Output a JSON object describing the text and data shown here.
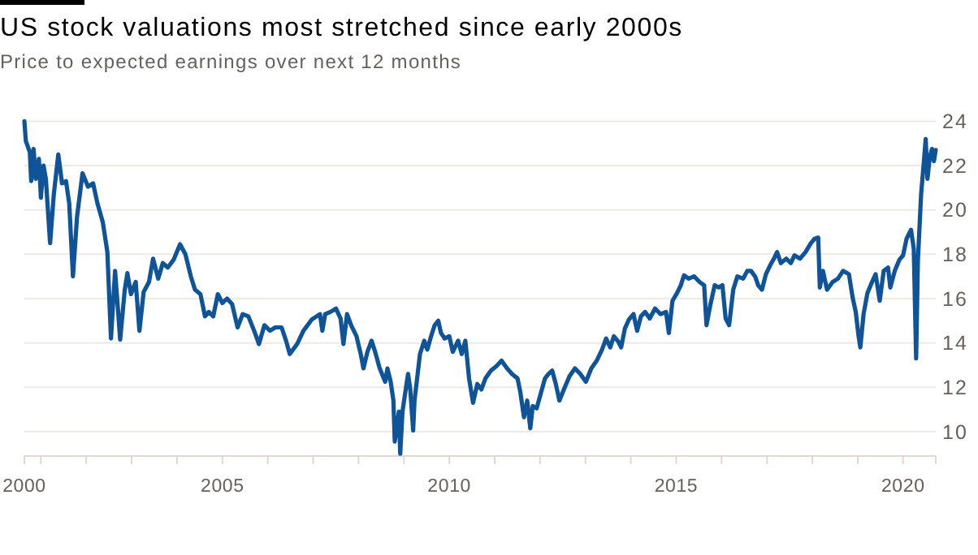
{
  "chart_data": {
    "type": "line",
    "title": "US stock valuations most stretched since early 2000s",
    "subtitle": "Price to expected earnings over next 12 months",
    "x": [
      "2000-08-21",
      "2000-09-02",
      "2000-10-04",
      "2000-10-15",
      "2000-11-03",
      "2000-11-21",
      "2000-12-16",
      "2001-01-01",
      "2001-01-22",
      "2001-02-10",
      "2001-03-16",
      "2001-04-15",
      "2001-05-21",
      "2001-06-20",
      "2001-07-22",
      "2001-08-17",
      "2001-09-16",
      "2001-10-19",
      "2001-12-02",
      "2002-01-15",
      "2002-02-25",
      "2002-04-01",
      "2002-05-14",
      "2002-06-20",
      "2002-07-19",
      "2002-08-21",
      "2002-09-16",
      "2002-10-01",
      "2002-11-07",
      "2002-11-28",
      "2002-12-27",
      "2003-02-03",
      "2003-03-05",
      "2003-04-08",
      "2003-05-21",
      "2003-06-23",
      "2003-08-03",
      "2003-09-09",
      "2003-10-19",
      "2003-12-05",
      "2004-01-26",
      "2004-03-09",
      "2004-04-22",
      "2004-05-25",
      "2004-07-08",
      "2004-08-14",
      "2004-09-13",
      "2004-10-19",
      "2004-11-25",
      "2005-01-01",
      "2005-02-07",
      "2005-03-20",
      "2005-05-03",
      "2005-06-13",
      "2005-07-29",
      "2005-09-20",
      "2005-10-22",
      "2005-12-05",
      "2006-01-19",
      "2006-03-02",
      "2006-04-22",
      "2006-05-28",
      "2006-06-27",
      "2006-08-25",
      "2006-10-15",
      "2006-12-20",
      "2007-02-25",
      "2007-03-16",
      "2007-04-08",
      "2007-05-21",
      "2007-07-04",
      "2007-08-10",
      "2007-09-02",
      "2007-10-01",
      "2007-11-03",
      "2007-12-16",
      "2008-01-19",
      "2008-02-10",
      "2008-03-13",
      "2008-04-15",
      "2008-05-14",
      "2008-06-20",
      "2008-08-03",
      "2008-08-21",
      "2008-09-16",
      "2008-10-08",
      "2008-10-19",
      "2008-11-21",
      "2008-12-02",
      "2008-12-20",
      "2009-01-15",
      "2009-02-03",
      "2009-02-21",
      "2009-03-16",
      "2009-03-27",
      "2009-05-10",
      "2009-06-13",
      "2009-07-08",
      "2009-08-07",
      "2009-09-05",
      "2009-10-04",
      "2009-10-26",
      "2009-11-25",
      "2010-01-01",
      "2010-01-29",
      "2010-03-13",
      "2010-04-11",
      "2010-05-10",
      "2010-06-09",
      "2010-07-11",
      "2010-08-14",
      "2010-09-16",
      "2010-10-19",
      "2010-12-02",
      "2011-01-15",
      "2011-02-25",
      "2011-04-11",
      "2011-05-21",
      "2011-07-04",
      "2011-07-26",
      "2011-08-25",
      "2011-09-20",
      "2011-10-15",
      "2011-11-03",
      "2011-12-05",
      "2012-01-11",
      "2012-02-10",
      "2012-03-09",
      "2012-04-08",
      "2012-05-07",
      "2012-06-05",
      "2012-07-11",
      "2012-08-25",
      "2012-10-08",
      "2012-11-21",
      "2013-01-04",
      "2013-02-17",
      "2013-04-01",
      "2013-05-14",
      "2013-06-16",
      "2013-07-19",
      "2013-08-17",
      "2013-09-23",
      "2013-10-15",
      "2013-11-14",
      "2013-12-16",
      "2014-01-22",
      "2014-02-21",
      "2014-03-23",
      "2014-04-26",
      "2014-06-02",
      "2014-07-15",
      "2014-08-28",
      "2014-10-11",
      "2014-11-03",
      "2014-12-02",
      "2015-01-08",
      "2015-02-07",
      "2015-03-05",
      "2015-04-11",
      "2015-05-25",
      "2015-07-08",
      "2015-08-14",
      "2015-09-02",
      "2015-10-04",
      "2015-11-07",
      "2015-12-09",
      "2016-01-08",
      "2016-02-03",
      "2016-03-02",
      "2016-04-04",
      "2016-05-07",
      "2016-06-23",
      "2016-07-26",
      "2016-08-25",
      "2016-09-27",
      "2016-10-22",
      "2016-11-21",
      "2016-12-23",
      "2017-01-26",
      "2017-03-02",
      "2017-03-23",
      "2017-04-22",
      "2017-06-05",
      "2017-07-11",
      "2017-08-10",
      "2017-09-23",
      "2017-11-07",
      "2017-12-20",
      "2018-01-19",
      "2018-02-17",
      "2018-03-02",
      "2018-03-27",
      "2018-04-29",
      "2018-06-13",
      "2018-07-26",
      "2018-09-05",
      "2018-10-22",
      "2018-11-21",
      "2018-12-16",
      "2019-01-08",
      "2019-01-22",
      "2019-02-17",
      "2019-03-20",
      "2019-04-26",
      "2019-05-25",
      "2019-06-27",
      "2019-07-29",
      "2019-09-02",
      "2019-09-20",
      "2019-10-26",
      "2019-12-02",
      "2020-01-01",
      "2020-01-29",
      "2020-03-05",
      "2020-03-27",
      "2020-04-15",
      "2020-04-29",
      "2020-05-25",
      "2020-06-16",
      "2020-07-01",
      "2020-07-15",
      "2020-08-03",
      "2020-08-21",
      "2020-09-05",
      "2020-09-20"
    ],
    "series": [
      {
        "color": "#0f5499",
        "values": [
          24.0,
          23.1,
          22.6,
          21.3,
          22.75,
          21.4,
          22.3,
          20.55,
          22.0,
          21.4,
          18.5,
          20.7,
          22.5,
          21.2,
          21.3,
          20.3,
          17.0,
          19.7,
          21.65,
          21.05,
          21.2,
          20.3,
          19.45,
          18.1,
          14.2,
          17.25,
          15.3,
          14.15,
          16.4,
          17.15,
          16.2,
          16.75,
          14.55,
          16.3,
          16.75,
          17.8,
          16.9,
          17.6,
          17.4,
          17.75,
          18.45,
          18.0,
          17.0,
          16.4,
          16.2,
          15.2,
          15.4,
          15.2,
          16.2,
          15.8,
          16.0,
          15.75,
          14.7,
          15.3,
          15.2,
          14.45,
          13.95,
          14.8,
          14.55,
          14.7,
          14.7,
          14.1,
          13.5,
          13.95,
          14.55,
          15.05,
          15.3,
          14.55,
          15.3,
          15.4,
          15.55,
          15.1,
          13.95,
          15.3,
          14.8,
          14.3,
          13.5,
          12.85,
          13.6,
          14.1,
          13.6,
          12.85,
          12.25,
          12.85,
          12.25,
          11.4,
          9.55,
          10.9,
          9.0,
          10.9,
          11.9,
          12.6,
          11.9,
          10.05,
          11.4,
          13.5,
          14.1,
          13.7,
          14.3,
          14.8,
          15.0,
          14.45,
          14.2,
          14.3,
          13.6,
          14.1,
          13.5,
          14.1,
          12.4,
          11.3,
          12.15,
          11.9,
          12.4,
          12.75,
          12.95,
          13.2,
          12.85,
          12.6,
          12.4,
          11.8,
          10.65,
          11.4,
          10.15,
          11.15,
          11.05,
          11.8,
          12.4,
          12.6,
          12.75,
          12.15,
          11.4,
          11.9,
          12.5,
          12.85,
          12.6,
          12.25,
          12.85,
          13.2,
          13.7,
          14.2,
          13.8,
          14.3,
          14.05,
          13.8,
          14.65,
          15.05,
          15.3,
          14.55,
          15.2,
          15.4,
          15.1,
          15.55,
          15.3,
          15.4,
          14.45,
          15.9,
          16.25,
          16.6,
          17.05,
          16.9,
          17.0,
          16.75,
          16.6,
          14.8,
          15.75,
          16.6,
          16.5,
          16.6,
          15.1,
          14.8,
          16.4,
          17.0,
          16.9,
          17.25,
          17.25,
          17.0,
          16.6,
          16.4,
          17.1,
          17.5,
          17.85,
          18.1,
          17.6,
          17.8,
          17.6,
          17.95,
          17.8,
          18.1,
          18.5,
          18.7,
          18.75,
          16.5,
          17.25,
          16.4,
          16.75,
          16.9,
          17.25,
          17.1,
          16.05,
          15.4,
          14.3,
          13.8,
          15.3,
          16.25,
          16.75,
          17.1,
          15.9,
          17.25,
          17.4,
          16.5,
          17.25,
          17.75,
          17.95,
          18.7,
          19.1,
          18.25,
          13.3,
          17.7,
          20.7,
          22.15,
          23.2,
          21.4,
          22.4,
          22.75,
          22.2,
          22.7
        ]
      }
    ],
    "xlim": [
      "2000-08-21",
      "2020-09-20"
    ],
    "xticks": [
      {
        "value": "2000-08-21",
        "label": "2000"
      },
      {
        "value": "2001",
        "label": null
      },
      {
        "value": "2002",
        "label": null
      },
      {
        "value": "2003",
        "label": null
      },
      {
        "value": "2004",
        "label": null
      },
      "2005",
      {
        "value": "2006",
        "label": null
      },
      {
        "value": "2007",
        "label": null
      },
      {
        "value": "2008",
        "label": null
      },
      {
        "value": "2009",
        "label": null
      },
      "2010",
      {
        "value": "2011",
        "label": null
      },
      {
        "value": "2012",
        "label": null
      },
      {
        "value": "2013",
        "label": null
      },
      {
        "value": "2014",
        "label": null
      },
      "2015",
      {
        "value": "2016",
        "label": null
      },
      {
        "value": "2017",
        "label": null
      },
      {
        "value": "2018",
        "label": null
      },
      {
        "value": "2019",
        "label": null
      },
      "2020",
      {
        "value": "2020-09-20",
        "label": null
      }
    ],
    "ylim": [
      8.9,
      24
    ],
    "yticks": [
      10,
      12,
      14,
      16,
      18,
      20,
      22,
      24
    ],
    "grid": "y"
  }
}
